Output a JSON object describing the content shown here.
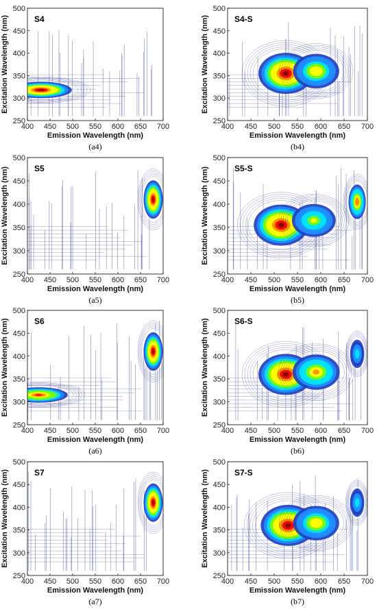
{
  "figure": {
    "panels": [
      {
        "title": "S4",
        "caption": "(a4)"
      },
      {
        "title": "S4-S",
        "caption": "(b4)"
      },
      {
        "title": "S5",
        "caption": "(a5)"
      },
      {
        "title": "S5-S",
        "caption": "(b5)"
      },
      {
        "title": "S6",
        "caption": "(a6)"
      },
      {
        "title": "S6-S",
        "caption": "(b6)"
      },
      {
        "title": "S7",
        "caption": "(a7)"
      },
      {
        "title": "S7-S",
        "caption": "(b7)"
      }
    ]
  },
  "colors": {
    "contour_line": "#1a237e",
    "map": [
      "#ffffff",
      "#1f3fbf",
      "#1e90ff",
      "#00e5ff",
      "#7cfc00",
      "#ffff00",
      "#ff8c00",
      "#ff0000",
      "#8b0000"
    ]
  },
  "chart_data": [
    {
      "type": "heatmap",
      "title": "S4",
      "xlabel": "Emission Wavelength (nm)",
      "ylabel": "Excitation Wavelength (nm)",
      "xlim": [
        400,
        700
      ],
      "ylim": [
        250,
        500
      ],
      "xticks": [
        400,
        450,
        500,
        550,
        600,
        650,
        700
      ],
      "yticks": [
        250,
        300,
        350,
        400,
        450,
        500
      ],
      "peaks": [
        {
          "em": 430,
          "ex": 318,
          "intensity": 1.0
        }
      ],
      "grid": false
    },
    {
      "type": "heatmap",
      "title": "S4-S",
      "xlabel": "Emission Wavelength (nm)",
      "ylabel": "Excitation Wavelength (nm)",
      "xlim": [
        400,
        700
      ],
      "ylim": [
        250,
        500
      ],
      "xticks": [
        400,
        450,
        500,
        550,
        600,
        650,
        700
      ],
      "yticks": [
        250,
        300,
        350,
        400,
        450,
        500
      ],
      "peaks": [
        {
          "em": 525,
          "ex": 355,
          "intensity": 1.0
        },
        {
          "em": 590,
          "ex": 360,
          "intensity": 0.6
        }
      ],
      "grid": false
    },
    {
      "type": "heatmap",
      "title": "S5",
      "xlabel": "Emission Wavelength (nm)",
      "ylabel": "Excitation Wavelength (nm)",
      "xlim": [
        400,
        700
      ],
      "ylim": [
        250,
        500
      ],
      "xticks": [
        400,
        450,
        500,
        550,
        600,
        650,
        700
      ],
      "yticks": [
        250,
        300,
        350,
        400,
        450,
        500
      ],
      "peaks": [
        {
          "em": 678,
          "ex": 410,
          "intensity": 1.0
        }
      ],
      "grid": false
    },
    {
      "type": "heatmap",
      "title": "S5-S",
      "xlabel": "Emission Wavelength (nm)",
      "ylabel": "Excitation Wavelength (nm)",
      "xlim": [
        400,
        700
      ],
      "ylim": [
        250,
        500
      ],
      "xticks": [
        400,
        450,
        500,
        550,
        600,
        650,
        700
      ],
      "yticks": [
        250,
        300,
        350,
        400,
        450,
        500
      ],
      "peaks": [
        {
          "em": 515,
          "ex": 355,
          "intensity": 1.0
        },
        {
          "em": 585,
          "ex": 365,
          "intensity": 0.5
        },
        {
          "em": 678,
          "ex": 405,
          "intensity": 0.75
        }
      ],
      "grid": false
    },
    {
      "type": "heatmap",
      "title": "S6",
      "xlabel": "Emission Wavelength (nm)",
      "ylabel": "Excitation Wavelength (nm)",
      "xlim": [
        400,
        700
      ],
      "ylim": [
        250,
        500
      ],
      "xticks": [
        400,
        450,
        500,
        550,
        600,
        650,
        700
      ],
      "yticks": [
        250,
        300,
        350,
        400,
        450,
        500
      ],
      "peaks": [
        {
          "em": 425,
          "ex": 315,
          "intensity": 0.85
        },
        {
          "em": 678,
          "ex": 410,
          "intensity": 1.0
        }
      ],
      "grid": false
    },
    {
      "type": "heatmap",
      "title": "S6-S",
      "xlabel": "Emission Wavelength (nm)",
      "ylabel": "Excitation Wavelength (nm)",
      "xlim": [
        400,
        700
      ],
      "ylim": [
        250,
        500
      ],
      "xticks": [
        400,
        450,
        500,
        550,
        600,
        650,
        700
      ],
      "yticks": [
        250,
        300,
        350,
        400,
        450,
        500
      ],
      "peaks": [
        {
          "em": 525,
          "ex": 360,
          "intensity": 1.0
        },
        {
          "em": 590,
          "ex": 365,
          "intensity": 0.65
        },
        {
          "em": 678,
          "ex": 405,
          "intensity": 0.35
        }
      ],
      "grid": false
    },
    {
      "type": "heatmap",
      "title": "S7",
      "xlabel": "Emission Wavelength (nm)",
      "ylabel": "Excitation Wavelength (nm)",
      "xlim": [
        400,
        700
      ],
      "ylim": [
        250,
        500
      ],
      "xticks": [
        400,
        450,
        500,
        550,
        600,
        650,
        700
      ],
      "yticks": [
        250,
        300,
        350,
        400,
        450,
        500
      ],
      "peaks": [
        {
          "em": 678,
          "ex": 410,
          "intensity": 1.0
        }
      ],
      "grid": false
    },
    {
      "type": "heatmap",
      "title": "S7-S",
      "xlabel": "Emission Wavelength (nm)",
      "ylabel": "Excitation Wavelength (nm)",
      "xlim": [
        400,
        700
      ],
      "ylim": [
        250,
        500
      ],
      "xticks": [
        400,
        450,
        500,
        550,
        600,
        650,
        700
      ],
      "yticks": [
        250,
        300,
        350,
        400,
        450,
        500
      ],
      "peaks": [
        {
          "em": 530,
          "ex": 360,
          "intensity": 1.0
        },
        {
          "em": 590,
          "ex": 365,
          "intensity": 0.6
        },
        {
          "em": 678,
          "ex": 410,
          "intensity": 0.35
        }
      ],
      "grid": false
    }
  ]
}
